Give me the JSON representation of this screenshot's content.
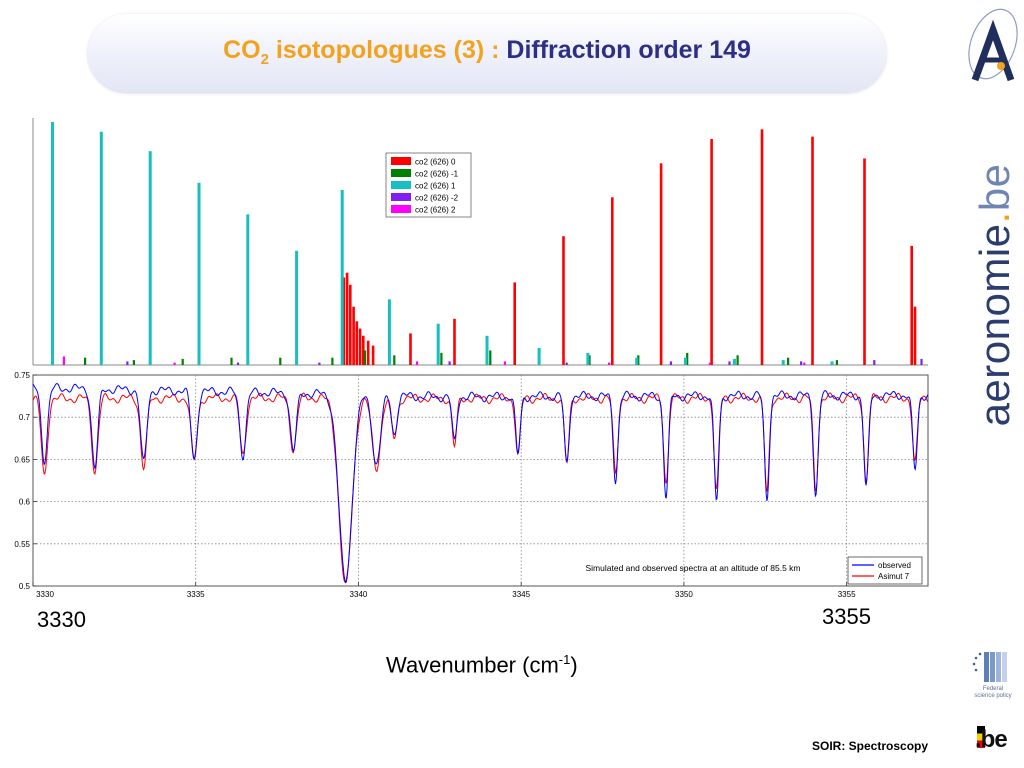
{
  "slide": {
    "title_co": "CO",
    "title_sub": "2",
    "title_part1": " isotopologues (3) : ",
    "title_part2": "Diffraction order 149",
    "annot_left": "3330",
    "annot_right": "3355",
    "axis_label_main": "Wavenumber  (cm",
    "axis_label_sup": "-1",
    "axis_label_close": ")",
    "footer": "SOIR: Spectroscopy",
    "sidebar_brand": "aeronomie",
    "sidebar_dot": ".",
    "sidebar_tld": "be",
    "logo_top_letter": "A",
    "logo_fed_line1": "Federal",
    "logo_fed_line2": "science policy",
    "logo_be": ".be"
  },
  "colors": {
    "co2_626_0": "#ff0000",
    "co2_626_m1": "#008000",
    "co2_626_1": "#17bfbf",
    "co2_626_m2": "#7f1ff0",
    "co2_626_2": "#ff00ff",
    "observed": "#0000ff",
    "asimut": "#ff0000",
    "title_orange": "#f4a11d",
    "title_blue": "#2d2f86"
  },
  "chart_data": [
    {
      "type": "bar",
      "xlim": [
        3330,
        3357.5
      ],
      "legend": {
        "placement": "top-center",
        "entries": [
          "co2 (626) 0",
          "co2 (626) -1",
          "co2 (626) 1",
          "co2 (626) -2",
          "co2 (626) 2"
        ]
      },
      "series": [
        {
          "name": "co2 (626) 0",
          "positions": [
            3339.55,
            3339.65,
            3339.75,
            3339.85,
            3339.95,
            3340.05,
            3340.15,
            3340.3,
            3340.45,
            3341.6,
            3342.95,
            3344.8,
            3346.3,
            3347.8,
            3349.3,
            3350.85,
            3352.4,
            3353.95,
            3355.55,
            3357.0,
            3357.1
          ],
          "values": [
            0.36,
            0.38,
            0.33,
            0.24,
            0.18,
            0.15,
            0.12,
            0.1,
            0.08,
            0.13,
            0.19,
            0.34,
            0.53,
            0.69,
            0.83,
            0.93,
            0.97,
            0.94,
            0.85,
            0.49,
            0.24
          ]
        },
        {
          "name": "co2 (626) -1",
          "positions": [
            3331.6,
            3333.1,
            3334.6,
            3336.1,
            3337.6,
            3339.2,
            3340.2,
            3341.1,
            3342.55,
            3344.05,
            3345.55,
            3347.1,
            3348.6,
            3350.1,
            3351.65,
            3353.2,
            3354.7
          ],
          "values": [
            0.03,
            0.02,
            0.025,
            0.03,
            0.03,
            0.03,
            0.06,
            0.04,
            0.05,
            0.06,
            0.05,
            0.04,
            0.04,
            0.05,
            0.04,
            0.03,
            0.02
          ]
        },
        {
          "name": "co2 (626) 1",
          "positions": [
            3330.6,
            3332.1,
            3333.6,
            3335.1,
            3336.6,
            3338.1,
            3339.5,
            3340.95,
            3342.45,
            3343.95,
            3345.55,
            3347.05,
            3348.55,
            3350.05,
            3351.55,
            3353.05,
            3354.55
          ],
          "values": [
            1.0,
            0.96,
            0.88,
            0.75,
            0.62,
            0.47,
            0.72,
            0.27,
            0.17,
            0.12,
            0.07,
            0.05,
            0.03,
            0.03,
            0.025,
            0.02,
            0.015
          ]
        },
        {
          "name": "co2 (626) -2",
          "positions": [
            3332.9,
            3336.3,
            3338.8,
            3342.8,
            3346.4,
            3349.6,
            3351.4,
            3353.6,
            3355.85,
            3357.3
          ],
          "values": [
            0.015,
            0.01,
            0.01,
            0.015,
            0.01,
            0.015,
            0.015,
            0.015,
            0.02,
            0.025
          ]
        },
        {
          "name": "co2 (626) 2",
          "positions": [
            3330.95,
            3334.35,
            3341.8,
            3344.5,
            3347.7,
            3350.8,
            3353.7
          ],
          "values": [
            0.035,
            0.01,
            0.015,
            0.015,
            0.01,
            0.01,
            0.01
          ]
        }
      ]
    },
    {
      "type": "line",
      "title": "Simulated and observed spectra at an altitude of 85.5 km",
      "xlim": [
        3330,
        3357.5
      ],
      "ylim": [
        0.5,
        0.75
      ],
      "xticks": [
        3330,
        3335,
        3340,
        3345,
        3350,
        3355
      ],
      "yticks": [
        0.5,
        0.55,
        0.6,
        0.65,
        0.7,
        0.75
      ],
      "grid": true,
      "legend": {
        "placement": "bottom-right",
        "entries": [
          "observed",
          "Asimut 7"
        ]
      },
      "baseline": {
        "x": [
          3330,
          3339.6,
          3342.5,
          3357.5
        ],
        "observed": [
          0.735,
          0.727,
          0.724,
          0.726
        ],
        "asimut": [
          0.722,
          0.723,
          0.722,
          0.723
        ]
      },
      "dips": [
        {
          "center": 3330.35,
          "width": 0.13,
          "observed": 0.65,
          "asimut": 0.63
        },
        {
          "center": 3331.9,
          "width": 0.13,
          "observed": 0.64,
          "asimut": 0.635
        },
        {
          "center": 3333.4,
          "width": 0.13,
          "observed": 0.645,
          "asimut": 0.64
        },
        {
          "center": 3334.95,
          "width": 0.13,
          "observed": 0.65,
          "asimut": 0.648
        },
        {
          "center": 3336.45,
          "width": 0.13,
          "observed": 0.655,
          "asimut": 0.655
        },
        {
          "center": 3338.0,
          "width": 0.13,
          "observed": 0.66,
          "asimut": 0.66
        },
        {
          "center": 3339.6,
          "width": 0.28,
          "observed": 0.505,
          "asimut": 0.5
        },
        {
          "center": 3340.55,
          "width": 0.18,
          "observed": 0.645,
          "asimut": 0.64
        },
        {
          "center": 3341.1,
          "width": 0.12,
          "observed": 0.68,
          "asimut": 0.675
        },
        {
          "center": 3342.95,
          "width": 0.1,
          "observed": 0.67,
          "asimut": 0.665
        },
        {
          "center": 3344.9,
          "width": 0.1,
          "observed": 0.655,
          "asimut": 0.655
        },
        {
          "center": 3346.4,
          "width": 0.1,
          "observed": 0.645,
          "asimut": 0.645
        },
        {
          "center": 3347.9,
          "width": 0.1,
          "observed": 0.625,
          "asimut": 0.632
        },
        {
          "center": 3349.45,
          "width": 0.1,
          "observed": 0.605,
          "asimut": 0.622
        },
        {
          "center": 3351.0,
          "width": 0.1,
          "observed": 0.6,
          "asimut": 0.612
        },
        {
          "center": 3352.55,
          "width": 0.1,
          "observed": 0.603,
          "asimut": 0.61
        },
        {
          "center": 3354.05,
          "width": 0.1,
          "observed": 0.607,
          "asimut": 0.615
        },
        {
          "center": 3355.6,
          "width": 0.1,
          "observed": 0.617,
          "asimut": 0.625
        },
        {
          "center": 3357.1,
          "width": 0.1,
          "observed": 0.637,
          "asimut": 0.645
        }
      ],
      "xlabel": "Wavenumber (cm-1)"
    }
  ]
}
